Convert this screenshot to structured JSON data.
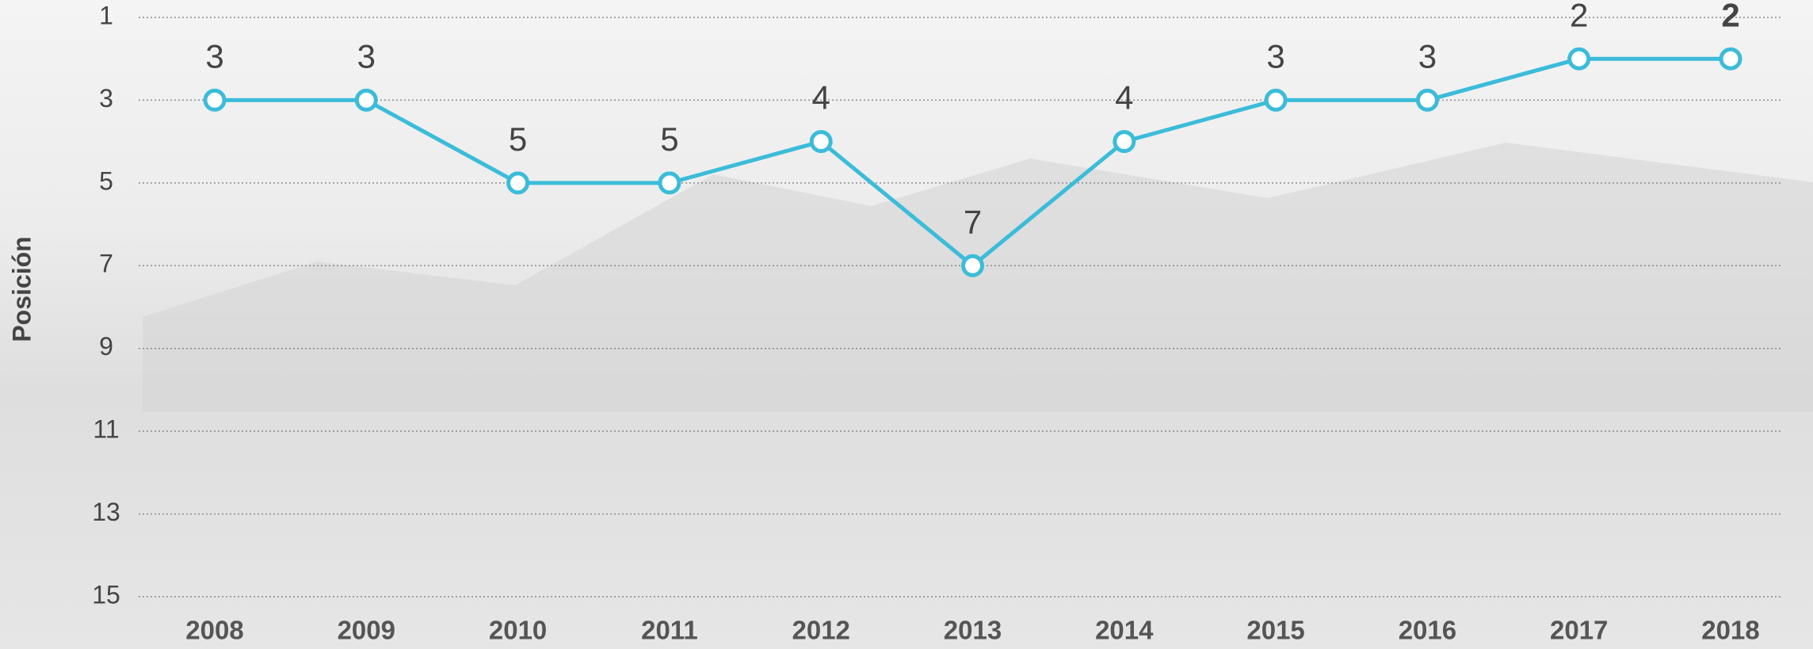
{
  "chart_data": {
    "type": "line",
    "y_axis_label": "Posición",
    "categories": [
      "2008",
      "2009",
      "2010",
      "2011",
      "2012",
      "2013",
      "2014",
      "2015",
      "2016",
      "2017",
      "2018"
    ],
    "values": [
      3,
      3,
      5,
      5,
      4,
      7,
      4,
      3,
      3,
      2,
      2
    ],
    "color": "#3bbcd9",
    "ylim": [
      15,
      1
    ],
    "yticks": [
      1,
      3,
      5,
      7,
      9,
      11,
      13,
      15
    ],
    "grid": true,
    "data_labels": true
  }
}
